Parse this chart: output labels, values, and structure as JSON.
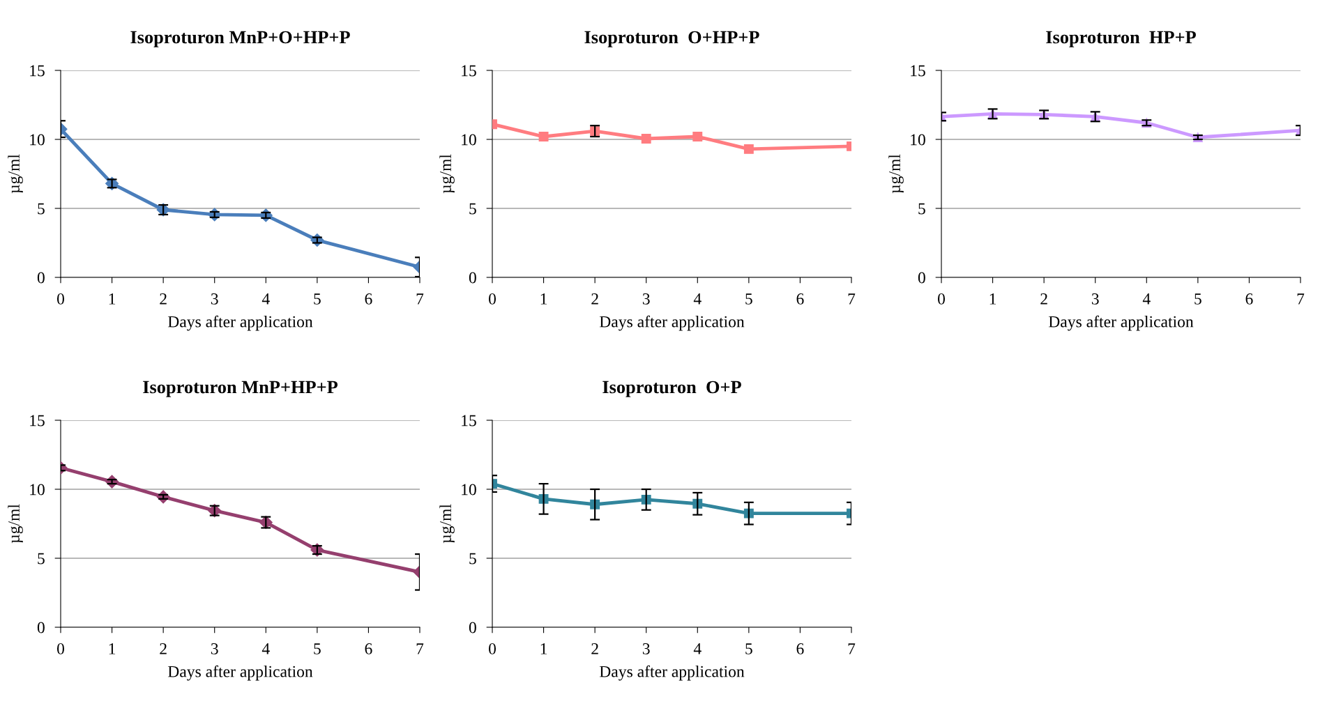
{
  "chart_data": [
    {
      "type": "line",
      "title": "Isoproturon MnP+O+HP+P",
      "xlabel": "Days after application",
      "ylabel": "µg/ml",
      "x": [
        0,
        1,
        2,
        3,
        4,
        5,
        7
      ],
      "xlim": [
        0,
        7
      ],
      "xticks": [
        0,
        1,
        2,
        3,
        4,
        5,
        6,
        7
      ],
      "ylim": [
        0,
        15
      ],
      "yticks": [
        0,
        5,
        10,
        15
      ],
      "grid": "y",
      "marker": "diamond",
      "series": [
        {
          "color": "#4a7ebb",
          "values": [
            10.75,
            6.8,
            4.9,
            4.55,
            4.5,
            2.7,
            0.75
          ],
          "errors": [
            0.6,
            0.3,
            0.35,
            0.2,
            0.2,
            0.2,
            0.7
          ]
        }
      ]
    },
    {
      "type": "line",
      "title": "Isoproturon  O+HP+P",
      "xlabel": "Days after application",
      "ylabel": "µg/ml",
      "x": [
        0,
        1,
        2,
        3,
        4,
        5,
        7
      ],
      "xlim": [
        0,
        7
      ],
      "xticks": [
        0,
        1,
        2,
        3,
        4,
        5,
        6,
        7
      ],
      "ylim": [
        0,
        15
      ],
      "yticks": [
        0,
        5,
        10,
        15
      ],
      "grid": "y",
      "marker": "square",
      "series": [
        {
          "color": "#ff7c80",
          "values": [
            11.1,
            10.2,
            10.6,
            10.05,
            10.2,
            9.3,
            9.5
          ],
          "errors": [
            null,
            null,
            0.4,
            null,
            null,
            null,
            null
          ]
        }
      ]
    },
    {
      "type": "line",
      "title": "Isoproturon  HP+P",
      "xlabel": "Days after application",
      "ylabel": "µg/ml",
      "x": [
        0,
        1,
        2,
        3,
        4,
        5,
        7
      ],
      "xlim": [
        0,
        7
      ],
      "xticks": [
        0,
        1,
        2,
        3,
        4,
        5,
        6,
        7
      ],
      "ylim": [
        0,
        15
      ],
      "yticks": [
        0,
        5,
        10,
        15
      ],
      "grid": "y",
      "marker": "triangle",
      "series": [
        {
          "color": "#cc99ff",
          "values": [
            11.65,
            11.85,
            11.8,
            11.65,
            11.2,
            10.15,
            10.65
          ],
          "errors": [
            0.3,
            0.35,
            0.3,
            0.35,
            0.2,
            0.15,
            0.35
          ]
        }
      ]
    },
    {
      "type": "line",
      "title": "Isoproturon MnP+HP+P",
      "xlabel": "Days after application",
      "ylabel": "µg/ml",
      "x": [
        0,
        1,
        2,
        3,
        4,
        5,
        7
      ],
      "xlim": [
        0,
        7
      ],
      "xticks": [
        0,
        1,
        2,
        3,
        4,
        5,
        6,
        7
      ],
      "ylim": [
        0,
        15
      ],
      "yticks": [
        0,
        5,
        10,
        15
      ],
      "grid": "y",
      "marker": "diamond",
      "series": [
        {
          "color": "#953f6e",
          "values": [
            11.55,
            10.55,
            9.45,
            8.45,
            7.6,
            5.6,
            4.0
          ],
          "errors": [
            0.2,
            0.15,
            0.15,
            0.35,
            0.4,
            0.3,
            1.3
          ]
        }
      ]
    },
    {
      "type": "line",
      "title": "Isoproturon  O+P",
      "xlabel": "Days after application",
      "ylabel": "µg/ml",
      "x": [
        0,
        1,
        2,
        3,
        4,
        5,
        7
      ],
      "xlim": [
        0,
        7
      ],
      "xticks": [
        0,
        1,
        2,
        3,
        4,
        5,
        6,
        7
      ],
      "ylim": [
        0,
        15
      ],
      "yticks": [
        0,
        5,
        10,
        15
      ],
      "grid": "y",
      "marker": "square",
      "series": [
        {
          "color": "#31859c",
          "values": [
            10.4,
            9.3,
            8.9,
            9.25,
            8.95,
            8.25,
            8.25
          ],
          "errors": [
            0.6,
            1.1,
            1.1,
            0.75,
            0.8,
            0.8,
            0.8
          ]
        }
      ]
    }
  ]
}
